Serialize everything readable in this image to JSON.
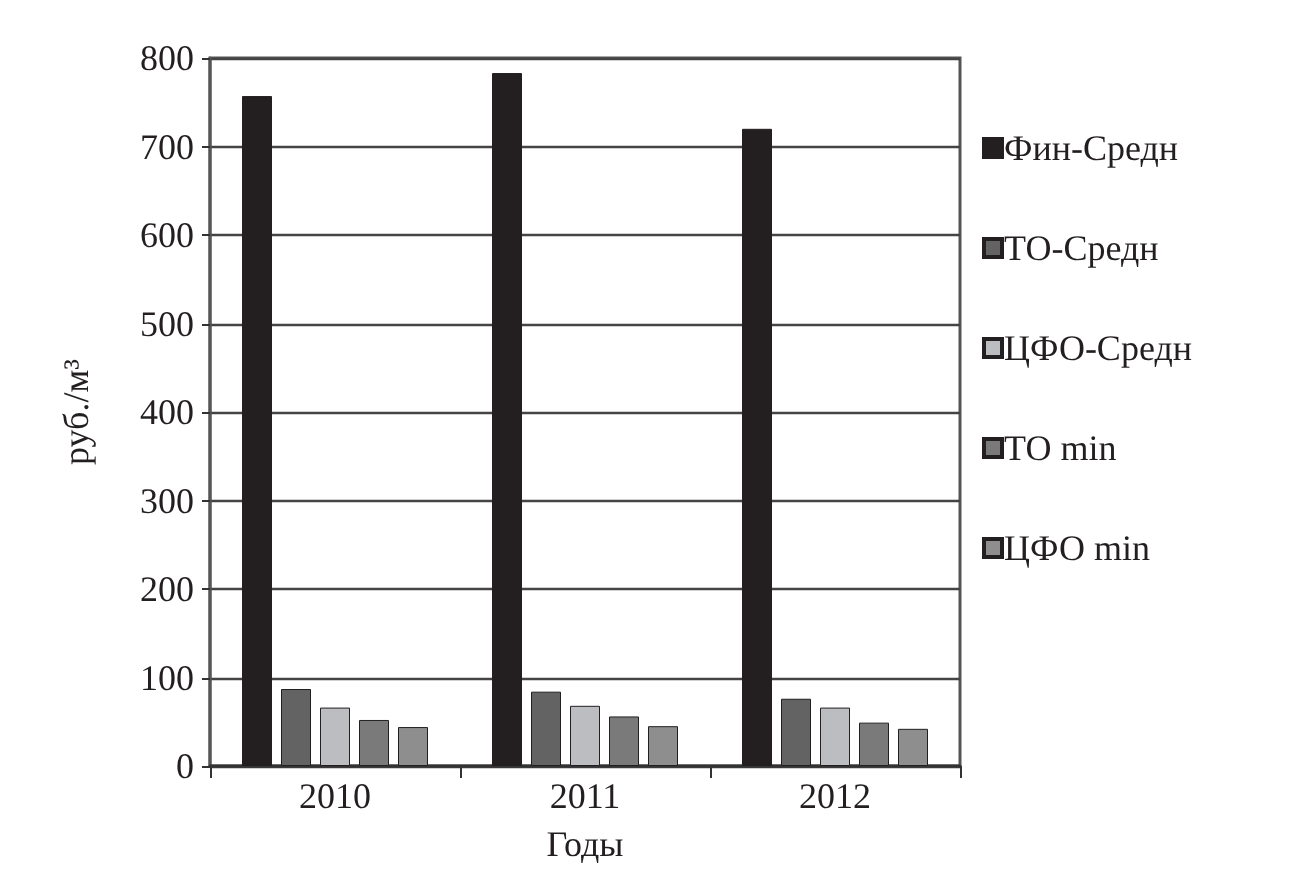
{
  "chart_data": {
    "type": "bar",
    "xlabel": "Годы",
    "ylabel": "руб./м³",
    "categories": [
      "2010",
      "2011",
      "2012"
    ],
    "series": [
      {
        "name": "Фин-Средн",
        "color": "#231f20",
        "values": [
          757,
          783,
          720
        ]
      },
      {
        "name": "ТО-Средн",
        "color": "#636363",
        "values": [
          87,
          84,
          76
        ]
      },
      {
        "name": "ЦФО-Средн",
        "color": "#bcbdc0",
        "values": [
          66,
          68,
          66
        ]
      },
      {
        "name": "ТО min",
        "color": "#7a7a7a",
        "values": [
          52,
          56,
          49
        ]
      },
      {
        "name": "ЦФО min",
        "color": "#8e8e8e",
        "values": [
          44,
          45,
          42
        ]
      }
    ],
    "ylim": [
      0,
      800
    ],
    "yticks": [
      0,
      100,
      200,
      300,
      400,
      500,
      600,
      700,
      800
    ],
    "grid": "y",
    "legend": "right"
  }
}
